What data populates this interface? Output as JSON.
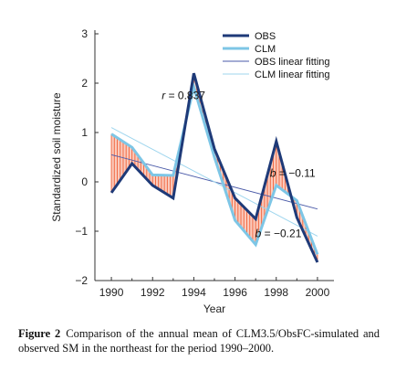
{
  "chart_data": {
    "type": "line",
    "x": [
      1990,
      1991,
      1992,
      1993,
      1994,
      1995,
      1996,
      1997,
      1998,
      1999,
      2000
    ],
    "series": [
      {
        "name": "OBS",
        "values": [
          -0.22,
          0.37,
          -0.07,
          -0.33,
          2.2,
          0.67,
          -0.33,
          -0.75,
          0.82,
          -0.72,
          -1.63
        ],
        "color": "#1e3a78"
      },
      {
        "name": "CLM",
        "values": [
          0.97,
          0.7,
          0.14,
          0.13,
          1.92,
          0.5,
          -0.78,
          -1.27,
          -0.07,
          -0.38,
          -1.47
        ],
        "color": "#7dc6e6"
      }
    ],
    "fits": [
      {
        "name": "OBS linear fitting",
        "start": 0.55,
        "end": -0.55,
        "color": "#4a5aa8"
      },
      {
        "name": "CLM linear fitting",
        "start": 1.1,
        "end": -1.1,
        "color": "#9fd6ee"
      }
    ],
    "fill_color": "#f26a43",
    "xlabel": "Year",
    "ylabel": "Standardized soil moisture",
    "xlim": [
      1989.2,
      2000.8
    ],
    "ylim": [
      -2,
      3
    ],
    "xticks": [
      1990,
      1992,
      1994,
      1996,
      1998,
      2000
    ],
    "yticks": [
      -2,
      -1,
      0,
      1,
      2,
      3
    ],
    "legend_position": "top-right",
    "annotations": [
      {
        "id": "r",
        "var": "r",
        "rest": " = 0.837",
        "x": 1993.5,
        "y": 1.68
      },
      {
        "id": "b_obs",
        "var": "b",
        "rest": " = −0.11",
        "x": 1998.8,
        "y": 0.1
      },
      {
        "id": "b_clm",
        "var": "b",
        "rest": " = −0.21",
        "x": 1998.1,
        "y": -1.12
      }
    ]
  },
  "caption": {
    "label": "Figure 2",
    "text": "Comparison of the annual mean of CLM3.5/ObsFC-simulated and observed SM in the northeast for the period 1990–2000."
  }
}
